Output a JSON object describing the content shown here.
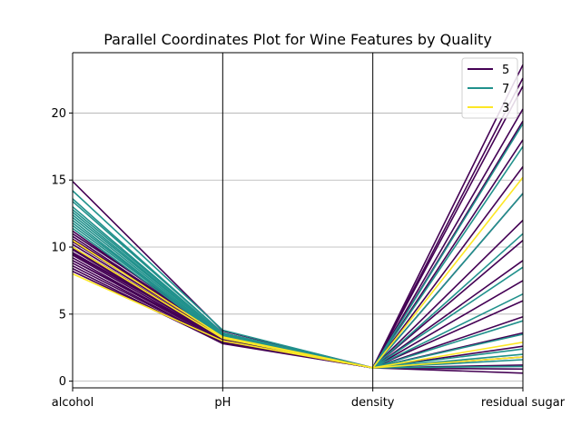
{
  "chart_data": {
    "type": "line",
    "subtype": "parallel-coordinates",
    "title": "Parallel Coordinates Plot for Wine Features by Quality",
    "categories": [
      "alcohol",
      "pH",
      "density",
      "residual sugar"
    ],
    "ylim": [
      -0.5,
      24.5
    ],
    "yticks": [
      0,
      5,
      10,
      15,
      20
    ],
    "grid": true,
    "legend_position": "top-right",
    "series": [
      {
        "name": "5",
        "color": "#440154",
        "lines": [
          [
            14.9,
            3.75,
            1.0,
            23.6
          ],
          [
            11.0,
            3.6,
            1.0,
            22.6
          ],
          [
            10.4,
            3.5,
            0.99,
            22.0
          ],
          [
            9.5,
            3.3,
            0.99,
            20.3
          ],
          [
            9.0,
            3.2,
            1.0,
            19.4
          ],
          [
            10.2,
            3.4,
            0.99,
            18.0
          ],
          [
            11.2,
            3.3,
            0.99,
            16.0
          ],
          [
            9.8,
            3.1,
            1.0,
            14.0
          ],
          [
            9.2,
            3.0,
            0.99,
            12.0
          ],
          [
            8.8,
            2.9,
            1.0,
            10.5
          ],
          [
            9.6,
            3.2,
            0.99,
            9.0
          ],
          [
            10.0,
            3.3,
            0.99,
            7.5
          ],
          [
            8.6,
            2.9,
            1.0,
            6.0
          ],
          [
            9.4,
            3.1,
            0.99,
            4.8
          ],
          [
            10.8,
            3.4,
            0.99,
            3.6
          ],
          [
            9.0,
            3.0,
            0.99,
            2.6
          ],
          [
            8.4,
            2.8,
            1.0,
            1.8
          ],
          [
            9.9,
            3.2,
            0.99,
            1.2
          ],
          [
            10.6,
            3.5,
            0.99,
            0.9
          ],
          [
            8.2,
            2.85,
            1.0,
            0.6
          ]
        ]
      },
      {
        "name": "7",
        "color": "#21918c",
        "lines": [
          [
            14.2,
            3.8,
            0.99,
            19.2
          ],
          [
            13.6,
            3.6,
            0.99,
            17.5
          ],
          [
            13.0,
            3.5,
            0.99,
            14.0
          ],
          [
            12.6,
            3.4,
            0.99,
            11.0
          ],
          [
            12.2,
            3.3,
            0.99,
            8.5
          ],
          [
            11.8,
            3.3,
            0.99,
            6.5
          ],
          [
            12.4,
            3.4,
            0.99,
            4.5
          ],
          [
            11.4,
            3.2,
            0.99,
            3.5
          ],
          [
            12.8,
            3.5,
            0.99,
            2.4
          ],
          [
            13.4,
            3.6,
            0.99,
            1.6
          ],
          [
            11.6,
            3.3,
            0.99,
            1.1
          ],
          [
            12.0,
            3.2,
            0.99,
            2.0
          ]
        ]
      },
      {
        "name": "3",
        "color": "#fde725",
        "lines": [
          [
            10.5,
            3.3,
            1.0,
            2.9
          ],
          [
            8.0,
            3.0,
            1.0,
            15.2
          ],
          [
            10.0,
            3.2,
            1.0,
            1.8
          ]
        ]
      }
    ]
  }
}
